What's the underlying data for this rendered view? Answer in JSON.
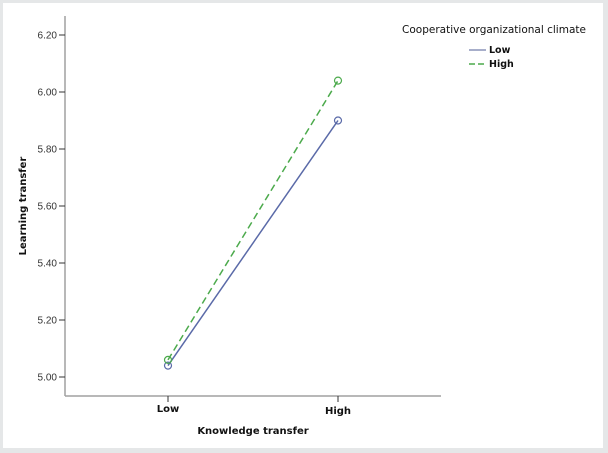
{
  "chart_data": {
    "type": "line",
    "title": "",
    "xlabel": "Knowledge transfer",
    "ylabel": "Learning transfer",
    "categories": [
      "Low",
      "High"
    ],
    "series": [
      {
        "name": "Low",
        "values": [
          5.04,
          5.9
        ],
        "color": "#5a6aa8",
        "style": "solid",
        "marker": "circle-open"
      },
      {
        "name": "High",
        "values": [
          5.06,
          6.04
        ],
        "color": "#4caa4c",
        "style": "dashed",
        "marker": "circle-open"
      }
    ],
    "ylim": [
      4.93,
      6.26
    ],
    "yticks": [
      "5.00",
      "5.20",
      "5.40",
      "5.60",
      "5.80",
      "6.00",
      "6.20"
    ],
    "grid": false,
    "legend": {
      "title": "Cooperative organizational climate",
      "position": "top-right",
      "entries": [
        "Low",
        "High"
      ]
    }
  },
  "axis_color": "#a0a0a0"
}
